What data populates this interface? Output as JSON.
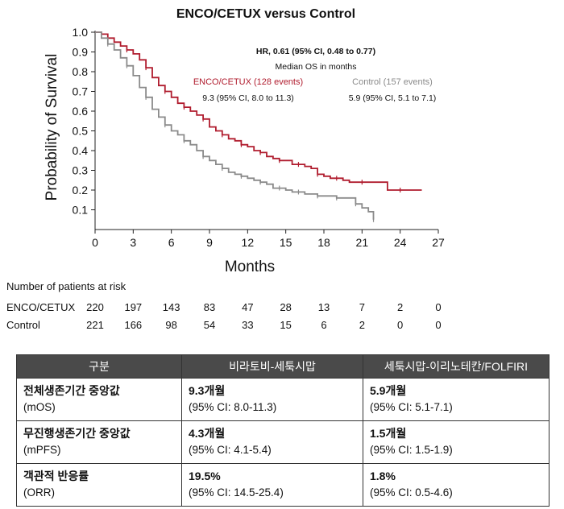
{
  "chart_data": {
    "type": "line",
    "title": "ENCO/CETUX versus Control",
    "xlabel": "Months",
    "ylabel": "Probability of Survival",
    "xlim": [
      0,
      27
    ],
    "ylim": [
      0,
      1.0
    ],
    "xticks": [
      0,
      3,
      6,
      9,
      12,
      15,
      18,
      21,
      24,
      27
    ],
    "yticks": [
      0.1,
      0.2,
      0.3,
      0.4,
      0.5,
      0.6,
      0.7,
      0.8,
      0.9,
      1.0
    ],
    "grid": false,
    "annotations": {
      "hr": "HR, 0.61 (95% CI, 0.48 to 0.77)",
      "median_label": "Median OS in months",
      "enco_label": "ENCO/CETUX (128 events)",
      "enco_median": "9.3 (95% CI, 8.0 to 11.3)",
      "control_label": "Control (157 events)",
      "control_median": "5.9 (95% CI, 5.1 to 7.1)"
    },
    "series": [
      {
        "name": "ENCO/CETUX",
        "color": "#b01c2e",
        "x": [
          0,
          0.5,
          1,
          1.5,
          2,
          2.5,
          3,
          3.5,
          4,
          4.5,
          5,
          5.5,
          6,
          6.5,
          7,
          7.5,
          8,
          8.5,
          9,
          9.5,
          10,
          10.5,
          11,
          11.5,
          12,
          12.5,
          13,
          13.5,
          14,
          14.5,
          15,
          15.5,
          16,
          16.5,
          17,
          17.5,
          18,
          18.5,
          19,
          19.5,
          20,
          21,
          22,
          23,
          24,
          25,
          25.7
        ],
        "y": [
          1.0,
          0.99,
          0.97,
          0.95,
          0.93,
          0.91,
          0.89,
          0.86,
          0.82,
          0.77,
          0.73,
          0.7,
          0.67,
          0.64,
          0.62,
          0.6,
          0.58,
          0.56,
          0.52,
          0.5,
          0.48,
          0.46,
          0.45,
          0.43,
          0.42,
          0.4,
          0.39,
          0.37,
          0.36,
          0.35,
          0.35,
          0.33,
          0.33,
          0.32,
          0.31,
          0.28,
          0.27,
          0.26,
          0.26,
          0.25,
          0.24,
          0.24,
          0.24,
          0.2,
          0.2,
          0.2,
          0.2
        ]
      },
      {
        "name": "Control",
        "color": "#8a8a8a",
        "x": [
          0,
          0.5,
          1,
          1.5,
          2,
          2.5,
          3,
          3.5,
          4,
          4.5,
          5,
          5.5,
          6,
          6.5,
          7,
          7.5,
          8,
          8.5,
          9,
          9.5,
          10,
          10.5,
          11,
          11.5,
          12,
          12.5,
          13,
          13.5,
          14,
          14.5,
          15,
          15.5,
          16,
          16.5,
          17,
          17.5,
          18,
          18.5,
          19,
          19.5,
          20,
          20.5,
          21,
          21.5,
          21.9
        ],
        "y": [
          1.0,
          0.97,
          0.94,
          0.91,
          0.87,
          0.83,
          0.78,
          0.72,
          0.67,
          0.61,
          0.57,
          0.53,
          0.5,
          0.48,
          0.45,
          0.43,
          0.4,
          0.37,
          0.35,
          0.33,
          0.31,
          0.29,
          0.28,
          0.27,
          0.26,
          0.25,
          0.24,
          0.23,
          0.21,
          0.21,
          0.2,
          0.19,
          0.19,
          0.18,
          0.18,
          0.17,
          0.17,
          0.17,
          0.16,
          0.16,
          0.16,
          0.13,
          0.11,
          0.09,
          0.05
        ]
      }
    ]
  },
  "risk_table": {
    "title": "Number of patients at risk",
    "rows": [
      {
        "label": "ENCO/CETUX",
        "values": [
          "220",
          "197",
          "143",
          "83",
          "47",
          "28",
          "13",
          "7",
          "2",
          "0"
        ]
      },
      {
        "label": "Control",
        "values": [
          "221",
          "166",
          "98",
          "54",
          "33",
          "15",
          "6",
          "2",
          "0",
          "0"
        ]
      }
    ]
  },
  "summary": {
    "headers": [
      "구분",
      "비라토비-세툭시맙",
      "세툭시맙-이리노테칸/FOLFIRI"
    ],
    "rows": [
      {
        "label": "전체생존기간 중앙값",
        "sub": "(mOS)",
        "a_main": "9.3개월",
        "a_ci": "(95% CI: 8.0-11.3)",
        "b_main": "5.9개월",
        "b_ci": "(95% CI: 5.1-7.1)"
      },
      {
        "label": "무진행생존기간 중앙값",
        "sub": "(mPFS)",
        "a_main": "4.3개월",
        "a_ci": "(95% CI: 4.1-5.4)",
        "b_main": "1.5개월",
        "b_ci": "(95% CI: 1.5-1.9)"
      },
      {
        "label": "객관적 반응률",
        "sub": "(ORR)",
        "a_main": "19.5%",
        "a_ci": "(95% CI: 14.5-25.4)",
        "b_main": "1.8%",
        "b_ci": "(95% CI: 0.5-4.6)"
      }
    ]
  }
}
